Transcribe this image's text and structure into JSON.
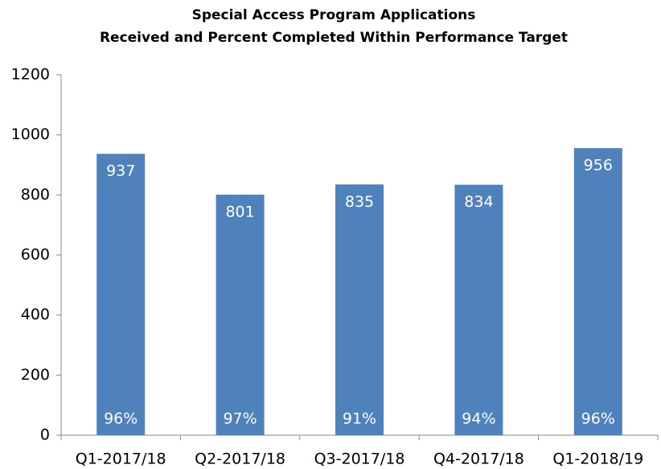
{
  "chart_data": {
    "type": "bar",
    "title": [
      "Special Access Program Applications",
      "Received and Percent Completed Within Performance Target"
    ],
    "categories": [
      "Q1-2017/18",
      "Q2-2017/18",
      "Q3-2017/18",
      "Q4-2017/18",
      "Q1-2018/19"
    ],
    "values": [
      937,
      801,
      835,
      834,
      956
    ],
    "color": "#4f81bd",
    "percent_completed": {
      "values": [
        96,
        97,
        91,
        94,
        96
      ],
      "value_labels": [
        "96%",
        "97%",
        "91%",
        "94%",
        "96%"
      ]
    },
    "ylim": [
      0,
      1200
    ],
    "yticks": [
      0,
      200,
      400,
      600,
      800,
      1000,
      1200
    ],
    "grid": false
  }
}
